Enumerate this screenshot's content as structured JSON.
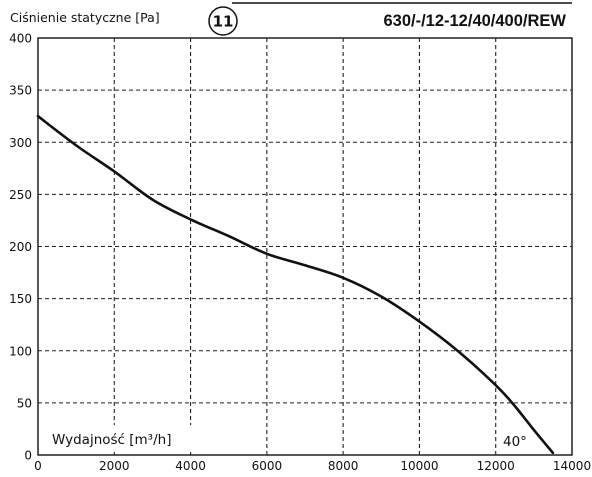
{
  "header": {
    "y_title": "Ciśnienie statyczne [Pa]",
    "chart_number": "11",
    "model": "630/-/12-12/40/400/REW"
  },
  "chart_data": {
    "type": "line",
    "title": "630/-/12-12/40/400/REW",
    "xlabel": "Wydajność [m³/h]",
    "ylabel": "Ciśnienie statyczne [Pa]",
    "xlim": [
      0,
      14000
    ],
    "ylim": [
      0,
      400
    ],
    "x_ticks": [
      0,
      2000,
      4000,
      6000,
      8000,
      10000,
      12000,
      14000
    ],
    "y_ticks": [
      0,
      50,
      100,
      150,
      200,
      250,
      300,
      350,
      400
    ],
    "grid": true,
    "series": [
      {
        "name": "40°",
        "x": [
          0,
          1000,
          2000,
          3000,
          4000,
          5000,
          6000,
          7000,
          8000,
          9000,
          10000,
          11000,
          12000,
          12500,
          13000,
          13500
        ],
        "y": [
          325,
          297,
          272,
          245,
          226,
          210,
          193,
          182,
          170,
          152,
          128,
          100,
          67,
          47,
          24,
          2
        ]
      }
    ]
  }
}
